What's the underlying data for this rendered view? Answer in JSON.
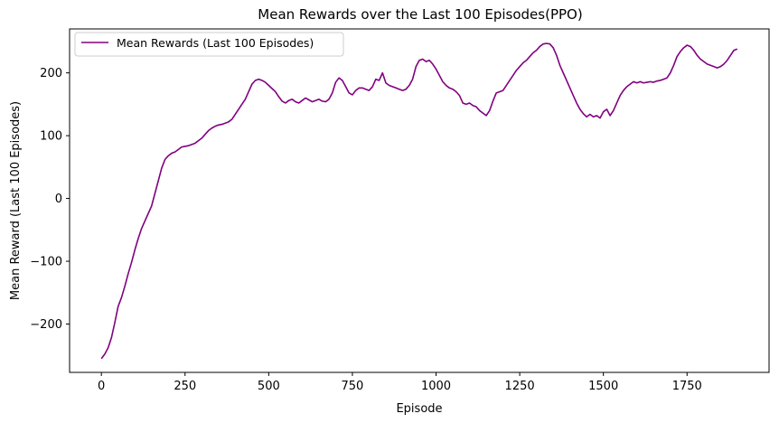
{
  "chart_data": {
    "type": "line",
    "title": "Mean Rewards over the Last 100 Episodes(PPO)",
    "xlabel": "Episode",
    "ylabel": "Mean Reward (Last 100 Episodes)",
    "xlim": [
      -95,
      1995
    ],
    "ylim": [
      -277,
      270
    ],
    "xticks": [
      0,
      250,
      500,
      750,
      1000,
      1250,
      1500,
      1750
    ],
    "yticks": [
      -200,
      -100,
      0,
      100,
      200
    ],
    "grid": false,
    "legend_position": "top-left",
    "series": [
      {
        "name": "Mean Rewards (Last 100 Episodes)",
        "color": "#800080",
        "x": [
          0,
          10,
          20,
          30,
          40,
          50,
          60,
          70,
          80,
          90,
          100,
          110,
          120,
          130,
          140,
          150,
          160,
          170,
          180,
          190,
          200,
          210,
          220,
          230,
          240,
          250,
          260,
          270,
          280,
          290,
          300,
          310,
          320,
          330,
          340,
          350,
          360,
          370,
          380,
          390,
          400,
          410,
          420,
          430,
          440,
          450,
          460,
          470,
          480,
          490,
          500,
          510,
          520,
          530,
          540,
          550,
          560,
          570,
          580,
          590,
          600,
          610,
          620,
          630,
          640,
          650,
          660,
          670,
          680,
          690,
          700,
          710,
          720,
          730,
          740,
          750,
          760,
          770,
          780,
          790,
          800,
          810,
          820,
          830,
          840,
          850,
          860,
          870,
          880,
          890,
          900,
          910,
          920,
          930,
          940,
          950,
          960,
          970,
          980,
          990,
          1000,
          1010,
          1020,
          1030,
          1040,
          1050,
          1060,
          1070,
          1080,
          1090,
          1100,
          1110,
          1120,
          1130,
          1140,
          1150,
          1160,
          1170,
          1180,
          1190,
          1200,
          1210,
          1220,
          1230,
          1240,
          1250,
          1260,
          1270,
          1280,
          1290,
          1300,
          1310,
          1320,
          1330,
          1340,
          1350,
          1360,
          1370,
          1380,
          1390,
          1400,
          1410,
          1420,
          1430,
          1440,
          1450,
          1460,
          1470,
          1480,
          1490,
          1500,
          1510,
          1520,
          1530,
          1540,
          1550,
          1560,
          1570,
          1580,
          1590,
          1600,
          1610,
          1620,
          1630,
          1640,
          1650,
          1660,
          1670,
          1680,
          1690,
          1700,
          1710,
          1720,
          1730,
          1740,
          1750,
          1760,
          1770,
          1780,
          1790,
          1800,
          1810,
          1820,
          1830,
          1840,
          1850,
          1860,
          1870,
          1880,
          1890,
          1900
        ],
        "values": [
          -255,
          -248,
          -238,
          -222,
          -198,
          -172,
          -158,
          -140,
          -120,
          -102,
          -82,
          -64,
          -48,
          -36,
          -24,
          -12,
          8,
          28,
          48,
          62,
          68,
          72,
          74,
          78,
          82,
          83,
          84,
          86,
          88,
          92,
          96,
          102,
          108,
          112,
          115,
          117,
          118,
          120,
          122,
          126,
          134,
          142,
          150,
          158,
          170,
          182,
          188,
          190,
          188,
          185,
          180,
          175,
          170,
          162,
          155,
          152,
          156,
          158,
          154,
          152,
          156,
          160,
          157,
          154,
          156,
          158,
          155,
          154,
          158,
          168,
          185,
          192,
          188,
          178,
          168,
          165,
          172,
          176,
          176,
          174,
          172,
          178,
          190,
          188,
          200,
          184,
          180,
          178,
          176,
          174,
          172,
          174,
          180,
          190,
          210,
          220,
          222,
          218,
          220,
          214,
          206,
          196,
          186,
          180,
          176,
          174,
          170,
          164,
          152,
          150,
          152,
          148,
          146,
          140,
          136,
          132,
          140,
          155,
          168,
          170,
          172,
          180,
          188,
          196,
          204,
          210,
          216,
          220,
          226,
          232,
          236,
          242,
          246,
          247,
          246,
          240,
          228,
          212,
          200,
          188,
          176,
          164,
          152,
          142,
          135,
          130,
          134,
          130,
          132,
          128,
          138,
          142,
          132,
          140,
          152,
          164,
          172,
          178,
          182,
          186,
          184,
          186,
          184,
          185,
          186,
          185,
          187,
          188,
          190,
          192,
          200,
          212,
          226,
          234,
          240,
          244,
          242,
          236,
          228,
          222,
          218,
          214,
          212,
          210,
          208,
          210,
          214,
          220,
          228,
          236,
          238
        ]
      }
    ]
  }
}
